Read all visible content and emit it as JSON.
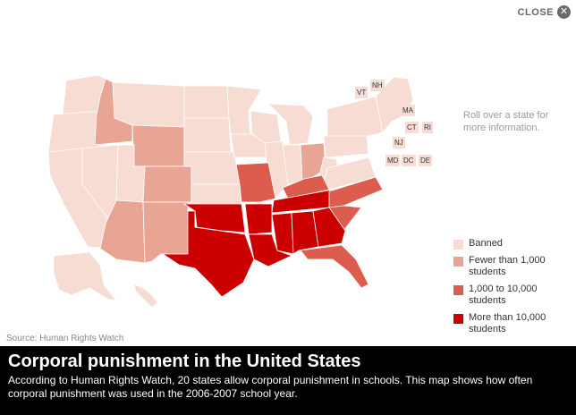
{
  "close": {
    "label": "CLOSE",
    "icon": "close-icon"
  },
  "hint": "Roll over a state for more information.",
  "colors": {
    "banned": "#f7dcd4",
    "fewer_than_1000": "#e8a593",
    "1000_to_10000": "#dc5c4e",
    "more_than_10000": "#cc0000"
  },
  "legend": [
    {
      "key": "banned",
      "label": "Banned"
    },
    {
      "key": "fewer_than_1000",
      "label": "Fewer than 1,000 students"
    },
    {
      "key": "1000_to_10000",
      "label": "1,000 to 10,000 students"
    },
    {
      "key": "more_than_10000",
      "label": "More than 10,000 students"
    }
  ],
  "small_states": [
    {
      "abbr": "VT",
      "category": "banned"
    },
    {
      "abbr": "NH",
      "category": "banned"
    },
    {
      "abbr": "MA",
      "category": "banned"
    },
    {
      "abbr": "CT",
      "category": "banned"
    },
    {
      "abbr": "RI",
      "category": "banned"
    },
    {
      "abbr": "NJ",
      "category": "banned"
    },
    {
      "abbr": "MD",
      "category": "banned"
    },
    {
      "abbr": "DC",
      "category": "banned"
    },
    {
      "abbr": "DE",
      "category": "banned"
    }
  ],
  "states": {
    "ID": "fewer_than_1000",
    "WY": "fewer_than_1000",
    "CO": "fewer_than_1000",
    "AZ": "fewer_than_1000",
    "NM": "fewer_than_1000",
    "OH": "fewer_than_1000",
    "MO": "1000_to_10000",
    "KY": "1000_to_10000",
    "NC": "1000_to_10000",
    "SC": "1000_to_10000",
    "FL": "1000_to_10000",
    "TX": "more_than_10000",
    "OK": "more_than_10000",
    "AR": "more_than_10000",
    "LA": "more_than_10000",
    "MS": "more_than_10000",
    "AL": "more_than_10000",
    "GA": "more_than_10000",
    "TN": "more_than_10000"
  },
  "source": "Source: Human Rights Watch",
  "caption": {
    "title": "Corporal punishment in the United States",
    "text": "According to Human Rights Watch, 20 states allow corporal punishment in schools. This map shows how often corporal punishment was used in the 2006-2007 school year."
  }
}
